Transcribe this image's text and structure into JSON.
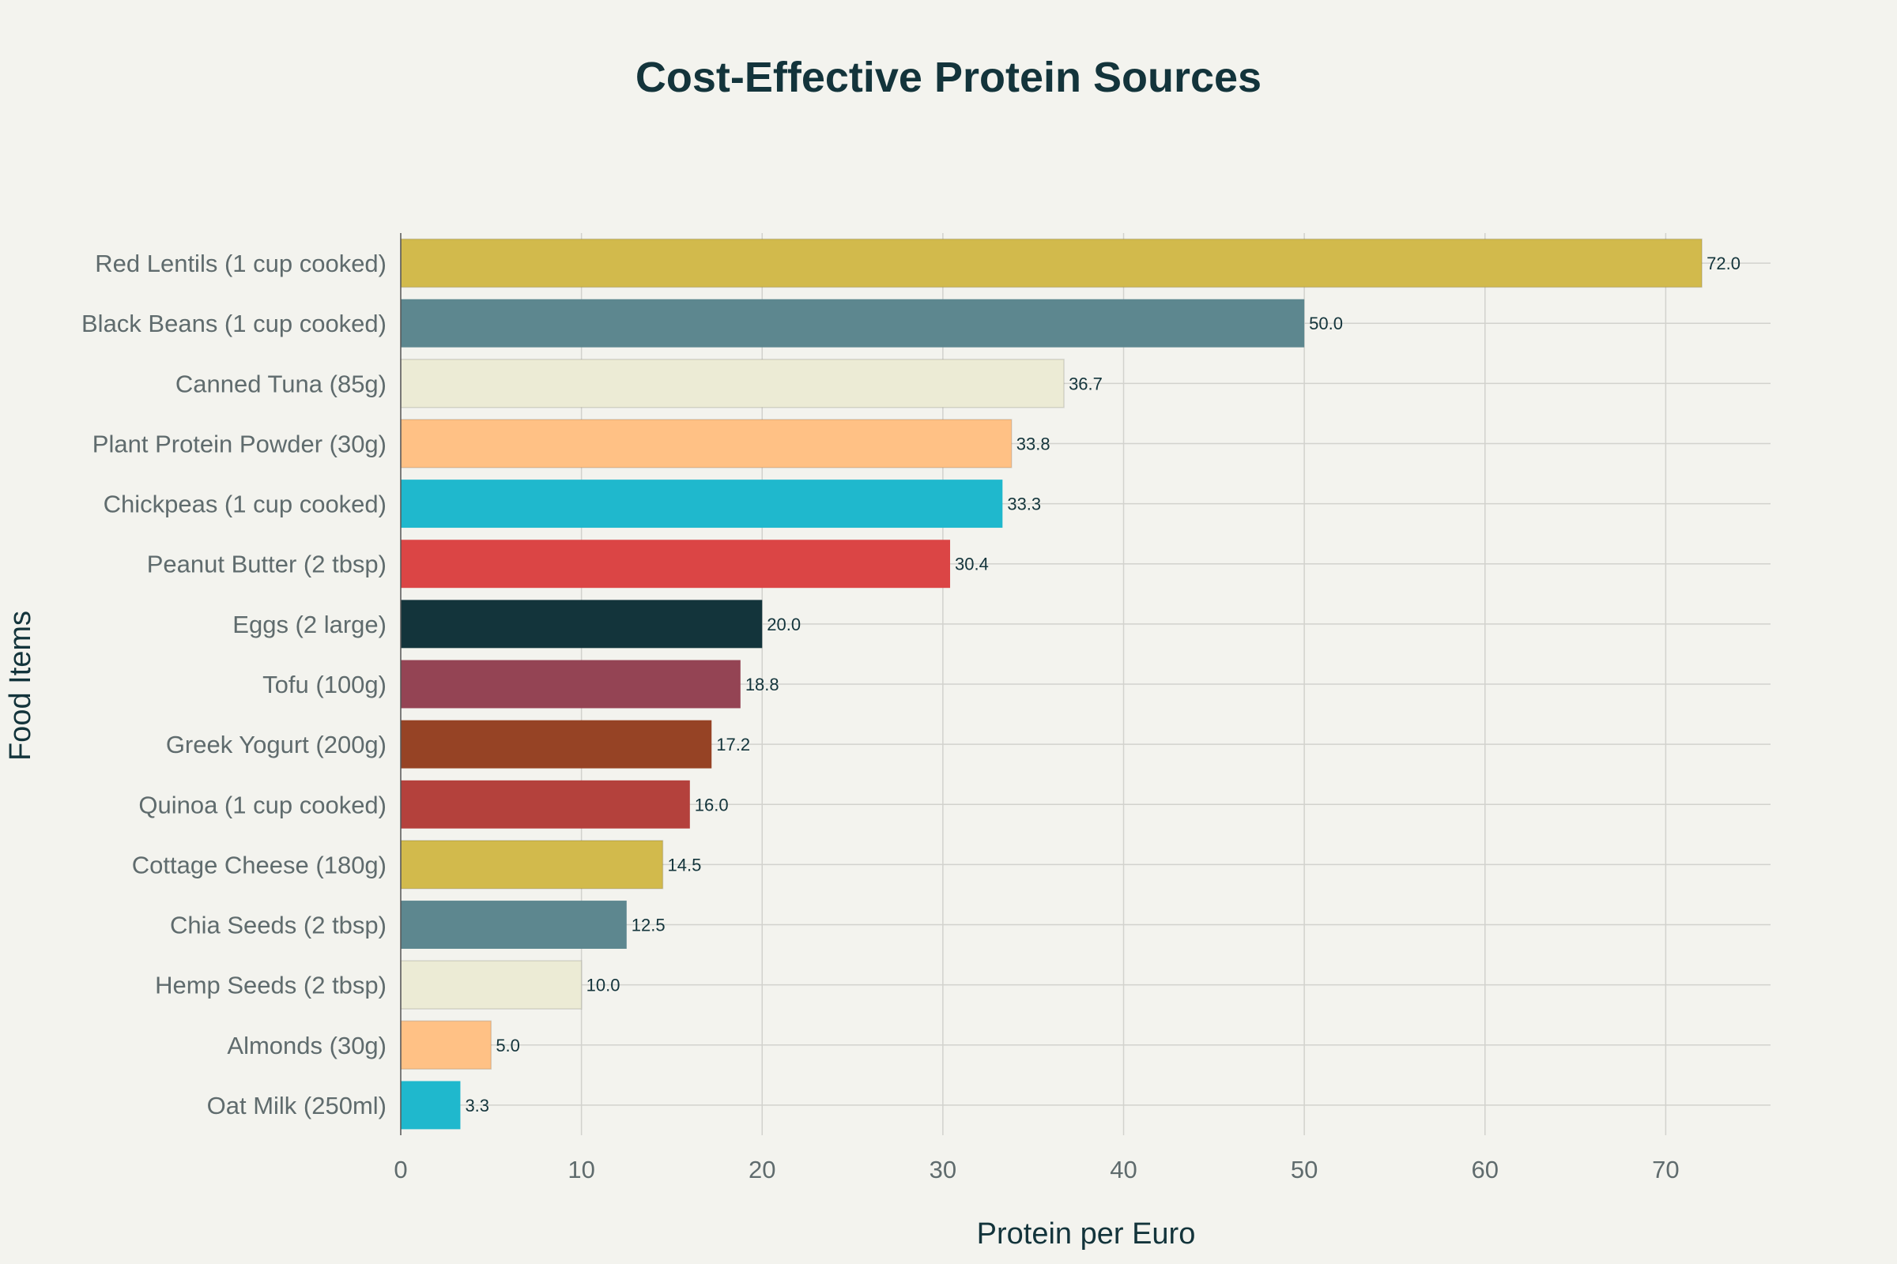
{
  "chart_data": {
    "type": "bar",
    "orientation": "horizontal",
    "title": "Cost-Effective Protein Sources",
    "xlabel": "Protein per Euro",
    "ylabel": "Food Items",
    "xlim": [
      0,
      75.8
    ],
    "xticks": [
      0,
      10,
      20,
      30,
      40,
      50,
      60,
      70
    ],
    "grid": true,
    "legend": "none",
    "categories": [
      "Red Lentils (1 cup cooked)",
      "Black Beans (1 cup cooked)",
      "Canned Tuna (85g)",
      "Plant Protein Powder (30g)",
      "Chickpeas (1 cup cooked)",
      "Peanut Butter (2 tbsp)",
      "Eggs (2 large)",
      "Tofu (100g)",
      "Greek Yogurt (200g)",
      "Quinoa (1 cup cooked)",
      "Cottage Cheese (180g)",
      "Chia Seeds (2 tbsp)",
      "Hemp Seeds (2 tbsp)",
      "Almonds (30g)",
      "Oat Milk (250ml)"
    ],
    "values": [
      72.0,
      50.0,
      36.7,
      33.8,
      33.3,
      30.4,
      20.0,
      18.8,
      17.2,
      16.0,
      14.5,
      12.5,
      10.0,
      5.0,
      3.3
    ],
    "value_labels": [
      "72.0",
      "50.0",
      "36.7",
      "33.8",
      "33.3",
      "30.4",
      "20.0",
      "18.8",
      "17.2",
      "16.0",
      "14.5",
      "12.5",
      "10.0",
      "5.0",
      "3.3"
    ],
    "colors": [
      "#d2ba4c",
      "#5d878f",
      "#ecebd5",
      "#ffc185",
      "#1fb8cd",
      "#db4545",
      "#13343b",
      "#944454",
      "#964325",
      "#b4413c",
      "#d2ba4c",
      "#5d878f",
      "#ecebd5",
      "#ffc185",
      "#1fb8cd"
    ]
  }
}
